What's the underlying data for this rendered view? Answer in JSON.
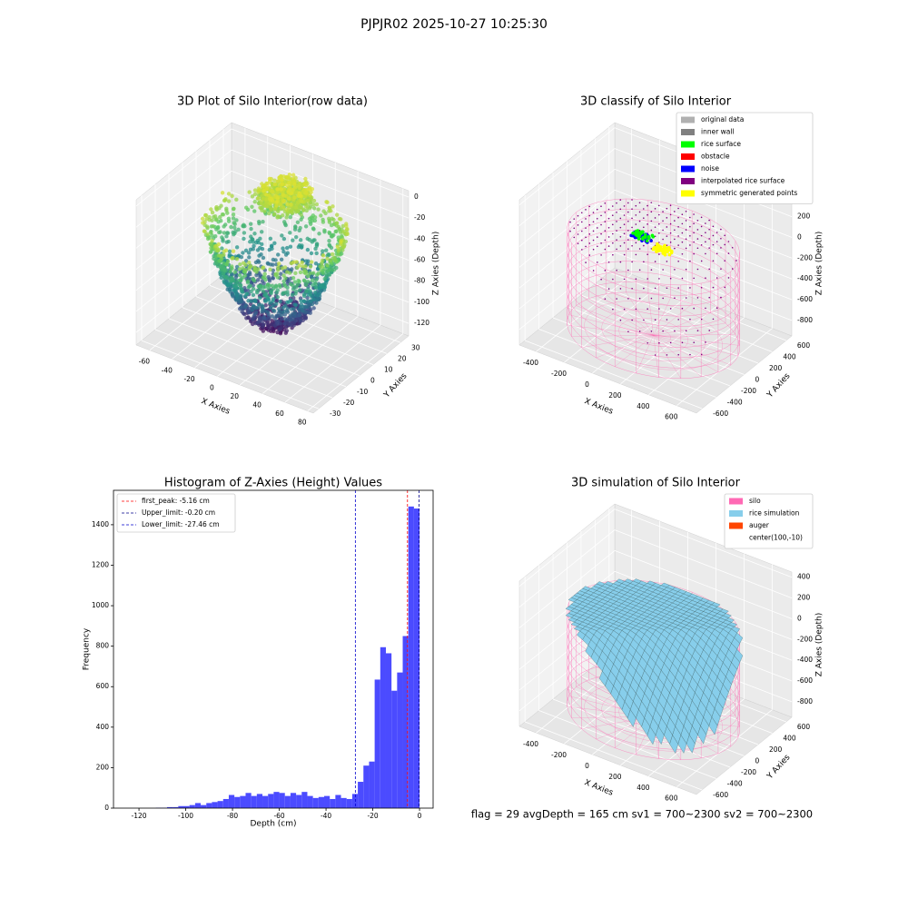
{
  "title": "PJPJR02 2025-10-27 10:25:30",
  "footer": "flag = 29  avgDepth = 165 cm  sv1 = 700~2300  sv2 = 700~2300",
  "chart_data": [
    {
      "type": "scatter3d",
      "title": "3D Plot of Silo Interior(row data)",
      "xlabel": "X Axies",
      "ylabel": "Y Axies",
      "zlabel": "Z Axies (Depth)",
      "xlim": [
        -72,
        85
      ],
      "ylim": [
        -34,
        36
      ],
      "zlim": [
        -132,
        6
      ],
      "xticks": [
        -60,
        -40,
        -20,
        0,
        20,
        40,
        60,
        80
      ],
      "yticks": [
        -30,
        -20,
        -10,
        0,
        10,
        20,
        30
      ],
      "zticks": [
        0,
        -20,
        -40,
        -60,
        -80,
        -100,
        -120
      ]
    },
    {
      "type": "wireframe3d",
      "title": "3D classify of Silo Interior",
      "xlim": [
        -520,
        740
      ],
      "ylim": [
        -680,
        680
      ],
      "zlim": [
        -950,
        450
      ],
      "xticks": [
        -400,
        -200,
        0,
        200,
        400,
        600
      ],
      "yticks": [
        -600,
        -400,
        -200,
        0,
        200,
        400,
        600
      ],
      "zticks": [
        400,
        200,
        0,
        -200,
        -400,
        -600,
        -800
      ],
      "xlabel": "X Axies",
      "ylabel": "Y Axies",
      "zlabel": "Z Axies (Depth)",
      "legend": [
        {
          "name": "original data",
          "color": "#b0b0b0"
        },
        {
          "name": "inner wall",
          "color": "#808080"
        },
        {
          "name": "rice surface",
          "color": "#00ff00"
        },
        {
          "name": "obstacle",
          "color": "#ff0000"
        },
        {
          "name": "noise",
          "color": "#0000ff"
        },
        {
          "name": "interpolated rice surface",
          "color": "#800080"
        },
        {
          "name": "symmetric generated points",
          "color": "#ffff00"
        }
      ]
    },
    {
      "type": "histogram",
      "title": "Histogram of Z-Axies (Height) Values",
      "xlabel": "Depth (cm)",
      "ylabel": "Frequency",
      "color": "#4b4bff",
      "bins": [
        -117.6,
        -115.2,
        -112.8,
        -110.4,
        -108,
        -105.6,
        -103.2,
        -100.8,
        -98.4,
        -96,
        -93.6,
        -91.2,
        -88.8,
        -86.4,
        -84,
        -81.6,
        -79.2,
        -76.8,
        -74.4,
        -72,
        -69.6,
        -67.2,
        -64.8,
        -62.4,
        -60,
        -57.6,
        -55.2,
        -52.8,
        -50.4,
        -48,
        -45.6,
        -43.2,
        -40.8,
        -38.4,
        -36,
        -33.6,
        -31.2,
        -28.8,
        -26.4,
        -24,
        -21.6,
        -19.2,
        -16.8,
        -14.4,
        -12,
        -9.6,
        -7.2,
        -4.8,
        -2.4,
        0
      ],
      "counts": [
        0,
        0,
        2,
        2,
        5,
        5,
        10,
        10,
        15,
        25,
        15,
        25,
        30,
        35,
        45,
        65,
        55,
        60,
        75,
        60,
        70,
        60,
        70,
        80,
        75,
        60,
        75,
        65,
        80,
        60,
        50,
        55,
        60,
        45,
        65,
        50,
        45,
        70,
        130,
        210,
        230,
        635,
        795,
        765,
        580,
        670,
        850,
        1490,
        1480
      ],
      "xlim": [
        -130.9,
        5.8
      ],
      "ylim": [
        0,
        1570
      ],
      "xticks": [
        -120,
        -100,
        -80,
        -60,
        -40,
        -20,
        0
      ],
      "yticks": [
        0,
        200,
        400,
        600,
        800,
        1000,
        1200,
        1400
      ],
      "vlines": [
        {
          "label": "first_peak: -5.16 cm",
          "value": -5.16,
          "color": "#ff0000"
        },
        {
          "label": "Upper_limit: -0.20 cm",
          "value": -0.2,
          "color": "#00008b"
        },
        {
          "label": "Lower_limit: -27.46 cm",
          "value": -27.46,
          "color": "#0000cd"
        }
      ]
    },
    {
      "type": "surface3d",
      "title": "3D simulation of Silo Interior",
      "xlim": [
        -520,
        740
      ],
      "ylim": [
        -680,
        680
      ],
      "zlim": [
        -950,
        450
      ],
      "xticks": [
        -400,
        -200,
        0,
        200,
        400,
        600
      ],
      "yticks": [
        -600,
        -400,
        -200,
        0,
        200,
        400,
        600
      ],
      "zticks": [
        400,
        200,
        0,
        -200,
        -400,
        -600,
        -800
      ],
      "xlabel": "X Axies",
      "ylabel": "Y Axies",
      "zlabel": "Z Axies (Depth)",
      "legend": [
        {
          "name": "silo",
          "color": "#ff69b4"
        },
        {
          "name": "rice simulation",
          "color": "#87ceeb"
        },
        {
          "name": "auger",
          "color": "#ff4500"
        },
        {
          "name": "center(100,-10)"
        }
      ]
    }
  ]
}
